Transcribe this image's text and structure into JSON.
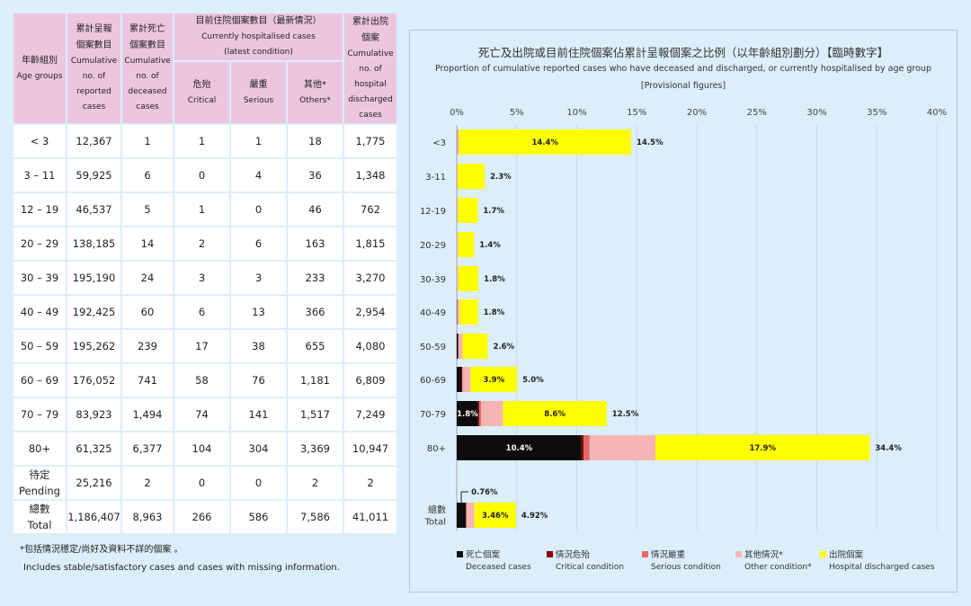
{
  "table": {
    "headers": {
      "age": [
        "年齡組別",
        "Age groups"
      ],
      "cumulative_reported": [
        "累計呈報",
        "個案數目",
        "Cumulative",
        "no. of",
        "reported",
        "cases"
      ],
      "cumulative_deceased": [
        "累計死亡",
        "個案數目",
        "Cumulative",
        "no. of",
        "deceased",
        "cases"
      ],
      "hospitalised": [
        "目前住院個案數目（最新情況）",
        "Currently hospitalised cases",
        "(latest condition)"
      ],
      "critical": [
        "危殆",
        "Critical"
      ],
      "serious": [
        "嚴重",
        "Serious"
      ],
      "others": [
        "其他*",
        "Others*"
      ],
      "discharged": [
        "累計出院",
        "個案",
        "Cumulative",
        "no. of",
        "hospital",
        "discharged",
        "cases"
      ]
    },
    "rows": [
      [
        "< 3",
        "12,367",
        "1",
        "1",
        "1",
        "18",
        "1,775"
      ],
      [
        "3 – 11",
        "59,925",
        "6",
        "0",
        "4",
        "36",
        "1,348"
      ],
      [
        "12 – 19",
        "46,537",
        "5",
        "1",
        "0",
        "46",
        "762"
      ],
      [
        "20 – 29",
        "138,185",
        "14",
        "2",
        "6",
        "163",
        "1,815"
      ],
      [
        "30 – 39",
        "195,190",
        "24",
        "3",
        "3",
        "233",
        "3,270"
      ],
      [
        "40 – 49",
        "192,425",
        "60",
        "6",
        "13",
        "366",
        "2,954"
      ],
      [
        "50 – 59",
        "195,262",
        "239",
        "17",
        "38",
        "655",
        "4,080"
      ],
      [
        "60 – 69",
        "176,052",
        "741",
        "58",
        "76",
        "1,181",
        "6,809"
      ],
      [
        "70 – 79",
        "83,923",
        "1,494",
        "74",
        "141",
        "1,517",
        "7,249"
      ],
      [
        "80+",
        "61,325",
        "6,377",
        "104",
        "304",
        "3,369",
        "10,947"
      ],
      [
        "待定\nPending",
        "25,216",
        "2",
        "0",
        "0",
        "2",
        "2"
      ],
      [
        "總數\nTotal",
        "1,186,407",
        "8,963",
        "266",
        "586",
        "7,586",
        "41,011"
      ]
    ]
  },
  "footnote": {
    "zh": "*包括情況穩定/尚好及資料不詳的個案 。",
    "en": "Includes stable/satisfactory cases and cases with missing information."
  },
  "colors": {
    "deceased": "#0d0d0d",
    "critical": "#8b0000",
    "serious": "#e46a6a",
    "other": "#f5b5b5",
    "discharged": "#ffff00"
  },
  "chart_data": {
    "type": "bar",
    "orientation": "horizontal",
    "stacked": true,
    "title": "死亡及出院或目前住院個案佔累計呈報個案之比例（以年齡組別劃分）【臨時數字】",
    "subtitle": "Proportion of cumulative reported cases who have deceased and discharged, or currently hospitalised by age group",
    "subtitle2": "[Provisional figures]",
    "x_ticks": [
      "0%",
      "5%",
      "10%",
      "15%",
      "20%",
      "25%",
      "30%",
      "35%",
      "40%"
    ],
    "xlim": [
      0,
      40
    ],
    "grid": true,
    "categories": [
      "<3",
      "3-11",
      "12-19",
      "20-29",
      "30-39",
      "40-49",
      "50-59",
      "60-69",
      "70-79",
      "80+",
      "總數\nTotal"
    ],
    "series": [
      {
        "name": "死亡個案",
        "name_en": "Deceased cases",
        "key": "deceased",
        "values": [
          0.01,
          0.01,
          0.01,
          0.01,
          0.01,
          0.03,
          0.12,
          0.42,
          1.78,
          10.4,
          0.76
        ]
      },
      {
        "name": "情況危殆",
        "name_en": "Critical condition",
        "key": "critical",
        "values": [
          0.01,
          0.0,
          0.0,
          0.0,
          0.0,
          0.0,
          0.01,
          0.03,
          0.09,
          0.17,
          0.02
        ]
      },
      {
        "name": "情況嚴重",
        "name_en": "Serious condition",
        "key": "serious",
        "values": [
          0.01,
          0.01,
          0.0,
          0.0,
          0.0,
          0.01,
          0.02,
          0.04,
          0.17,
          0.5,
          0.05
        ]
      },
      {
        "name": "其他情況*",
        "name_en": "Other condition*",
        "key": "other",
        "values": [
          0.15,
          0.06,
          0.1,
          0.12,
          0.12,
          0.19,
          0.34,
          0.67,
          1.81,
          5.49,
          0.64
        ]
      },
      {
        "name": "出院個案",
        "name_en": "Hospital discharged cases",
        "key": "discharged",
        "values": [
          14.35,
          2.25,
          1.64,
          1.31,
          1.68,
          1.54,
          2.09,
          3.87,
          8.64,
          17.85,
          3.46
        ]
      }
    ],
    "discharged_labels": [
      "14.4%",
      "",
      "",
      "",
      "",
      "",
      "",
      "3.9%",
      "8.6%",
      "17.9%",
      "3.46%"
    ],
    "deceased_labels": [
      "",
      "",
      "",
      "",
      "",
      "",
      "",
      "",
      "1.8%",
      "10.4%",
      ""
    ],
    "total_labels": [
      "14.5%",
      "2.3%",
      "1.7%",
      "1.4%",
      "1.8%",
      "1.8%",
      "2.6%",
      "5.0%",
      "12.5%",
      "34.4%",
      "4.92%"
    ],
    "callout": "0.76%"
  }
}
